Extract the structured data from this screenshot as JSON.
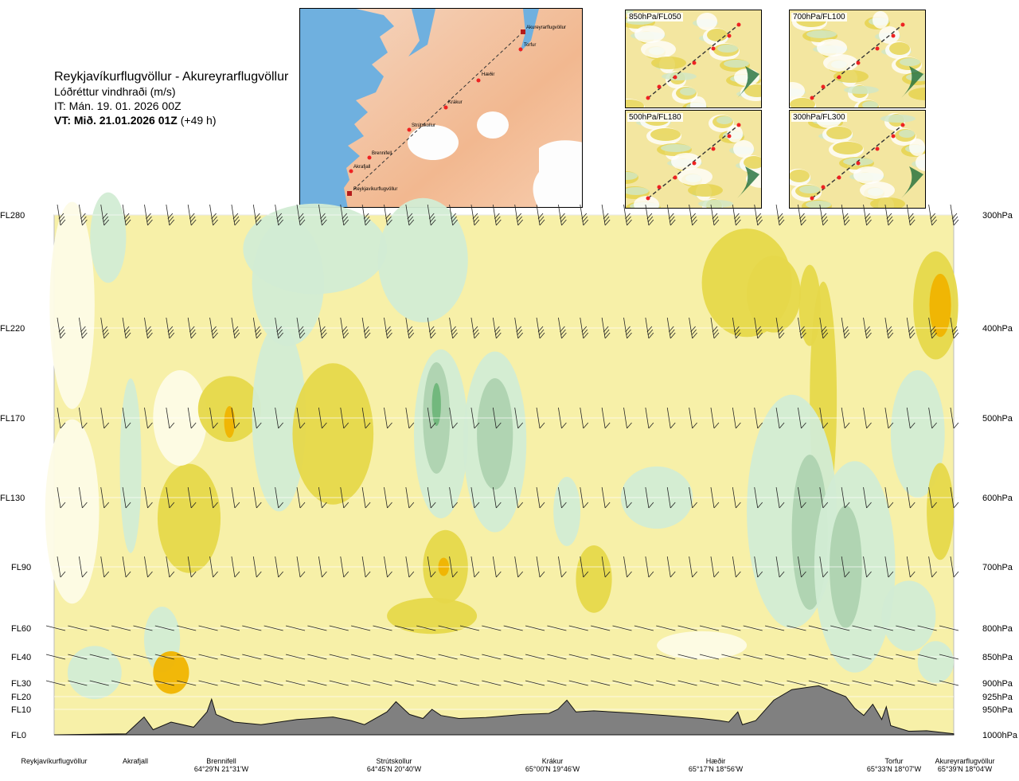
{
  "header": {
    "route": "Reykjavíkurflugvöllur - Akureyrarflugvöllur",
    "parameter": "Lóðréttur vindhraði (m/s)",
    "issue_time": "IT: Mán. 19. 01. 2026 00Z",
    "valid_time_bold": "VT: Mið. 21.01.2026 01Z",
    "valid_time_offset": "(+49 h)"
  },
  "route_map": {
    "points": [
      {
        "name": "Akureyrarflugvöllur"
      },
      {
        "name": "Torfur"
      },
      {
        "name": "Hæðir"
      },
      {
        "name": "Krákur"
      },
      {
        "name": "Strútskollur"
      },
      {
        "name": "Brennifell"
      },
      {
        "name": "Akrafjall"
      },
      {
        "name": "Reykjavíkurflugvöllur"
      }
    ]
  },
  "level_maps": [
    {
      "label": "850hPa/FL050"
    },
    {
      "label": "700hPa/FL100"
    },
    {
      "label": "500hPa/FL180"
    },
    {
      "label": "300hPa/FL300"
    }
  ],
  "colors": {
    "sink_strong": "#f0b400",
    "sink_mid": "#e6d84a",
    "sink_light": "#f7f0a8",
    "calm": "#fdfbe6",
    "rise_light": "#d2ecd4",
    "rise_mid": "#aed3b0",
    "rise_strong": "#6fb67a",
    "terrain": "#808080"
  },
  "chart_data": {
    "type": "heatmap",
    "title": "Lóðréttur vindhraði (m/s)",
    "y_levels_flight": [
      "FL280",
      "FL220",
      "FL170",
      "FL130",
      "FL90",
      "FL60",
      "FL40",
      "FL30",
      "FL20",
      "FL10",
      "FL0"
    ],
    "y_levels_pressure": [
      "300hPa",
      "400hPa",
      "500hPa",
      "600hPa",
      "700hPa",
      "800hPa",
      "850hPa",
      "900hPa",
      "925hPa",
      "950hPa",
      "1000hPa"
    ],
    "y_pressure_values": [
      300,
      400,
      500,
      600,
      700,
      800,
      850,
      900,
      925,
      950,
      1000
    ],
    "x_waypoints": [
      {
        "name": "Reykjavíkurflugvöllur",
        "coord": "",
        "pos": 0.0
      },
      {
        "name": "Akrafjall",
        "coord": "",
        "pos": 0.092
      },
      {
        "name": "Brennifell",
        "coord": "64°29'N 21°31'W",
        "pos": 0.186
      },
      {
        "name": "Strútskollur",
        "coord": "64°45'N 20°40'W",
        "pos": 0.378
      },
      {
        "name": "Krákur",
        "coord": "65°00'N 19°46'W",
        "pos": 0.57
      },
      {
        "name": "Hæðir",
        "coord": "65°17'N 18°56'W",
        "pos": 0.762
      },
      {
        "name": "Torfur",
        "coord": "65°33'N 18°07'W",
        "pos": 0.948
      },
      {
        "name": "Akureyrarflugvöllur",
        "coord": "65°39'N 18°04'W",
        "pos": 1.0
      }
    ],
    "terrain_pressure_hpa": [
      [
        0.0,
        1000
      ],
      [
        0.08,
        998
      ],
      [
        0.1,
        965
      ],
      [
        0.11,
        990
      ],
      [
        0.13,
        975
      ],
      [
        0.155,
        985
      ],
      [
        0.17,
        955
      ],
      [
        0.175,
        930
      ],
      [
        0.18,
        960
      ],
      [
        0.2,
        975
      ],
      [
        0.23,
        980
      ],
      [
        0.27,
        970
      ],
      [
        0.31,
        965
      ],
      [
        0.33,
        972
      ],
      [
        0.345,
        980
      ],
      [
        0.37,
        955
      ],
      [
        0.38,
        935
      ],
      [
        0.395,
        960
      ],
      [
        0.41,
        968
      ],
      [
        0.42,
        950
      ],
      [
        0.43,
        962
      ],
      [
        0.45,
        968
      ],
      [
        0.48,
        966
      ],
      [
        0.52,
        960
      ],
      [
        0.55,
        958
      ],
      [
        0.56,
        950
      ],
      [
        0.57,
        932
      ],
      [
        0.58,
        955
      ],
      [
        0.6,
        953
      ],
      [
        0.64,
        957
      ],
      [
        0.68,
        962
      ],
      [
        0.72,
        968
      ],
      [
        0.74,
        972
      ],
      [
        0.75,
        975
      ],
      [
        0.76,
        955
      ],
      [
        0.765,
        980
      ],
      [
        0.78,
        972
      ],
      [
        0.8,
        932
      ],
      [
        0.82,
        912
      ],
      [
        0.85,
        905
      ],
      [
        0.86,
        912
      ],
      [
        0.88,
        925
      ],
      [
        0.89,
        948
      ],
      [
        0.9,
        962
      ],
      [
        0.91,
        940
      ],
      [
        0.92,
        970
      ],
      [
        0.925,
        945
      ],
      [
        0.93,
        982
      ],
      [
        0.95,
        993
      ],
      [
        0.97,
        992
      ],
      [
        1.0,
        998
      ]
    ]
  }
}
